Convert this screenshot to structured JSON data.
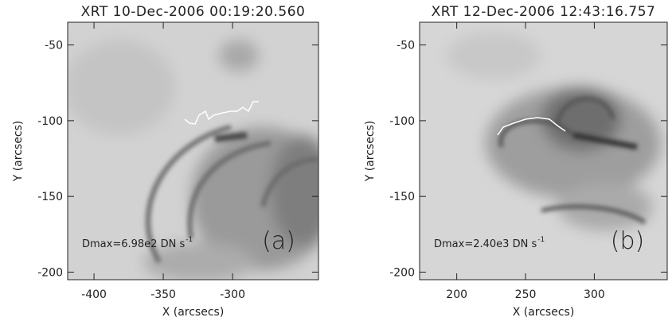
{
  "chart_data": [
    {
      "type": "image",
      "title": "XRT 10-Dec-2006 00:19:20.560",
      "x_label": "X (arcsecs)",
      "y_label": "Y (arcsecs)",
      "xlim": [
        -419,
        -238
      ],
      "ylim": [
        -205,
        -35
      ],
      "xticks": [
        -400,
        -350,
        -300
      ],
      "yticks": [
        -200,
        -150,
        -100,
        -50
      ],
      "annotation": "Dmax=6.98e2 DN s",
      "annotation_superscript": "-1",
      "panel_label": "(a)"
    },
    {
      "type": "image",
      "title": "XRT 12-Dec-2006 12:43:16.757",
      "x_label": "X (arcsecs)",
      "y_label": "Y (arcsecs)",
      "xlim": [
        173,
        353
      ],
      "ylim": [
        -205,
        -35
      ],
      "xticks": [
        200,
        250,
        300
      ],
      "yticks": [
        -200,
        -150,
        -100,
        -50
      ],
      "annotation": "Dmax=2.40e3 DN s",
      "annotation_superscript": "-1",
      "panel_label": "(b)"
    }
  ]
}
